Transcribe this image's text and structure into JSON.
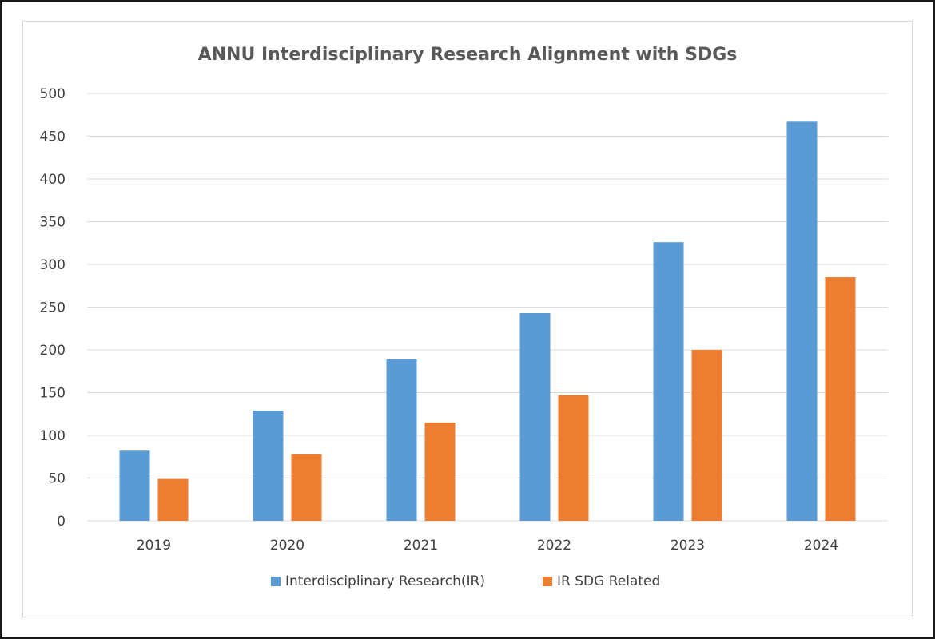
{
  "chart_data": {
    "type": "bar",
    "title": "ANNU Interdisciplinary Research Alignment with SDGs",
    "xlabel": "",
    "ylabel": "",
    "categories": [
      "2019",
      "2020",
      "2021",
      "2022",
      "2023",
      "2024"
    ],
    "series": [
      {
        "name": "Interdisciplinary Research(IR)",
        "color": "#5b9bd5",
        "values": [
          82,
          129,
          189,
          243,
          326,
          467
        ]
      },
      {
        "name": "IR SDG Related",
        "color": "#ed7d31",
        "values": [
          49,
          78,
          115,
          147,
          200,
          285
        ]
      }
    ],
    "ylim": [
      0,
      500
    ],
    "yticks": [
      0,
      50,
      100,
      150,
      200,
      250,
      300,
      350,
      400,
      450,
      500
    ],
    "grid": true,
    "legend": "bottom"
  }
}
